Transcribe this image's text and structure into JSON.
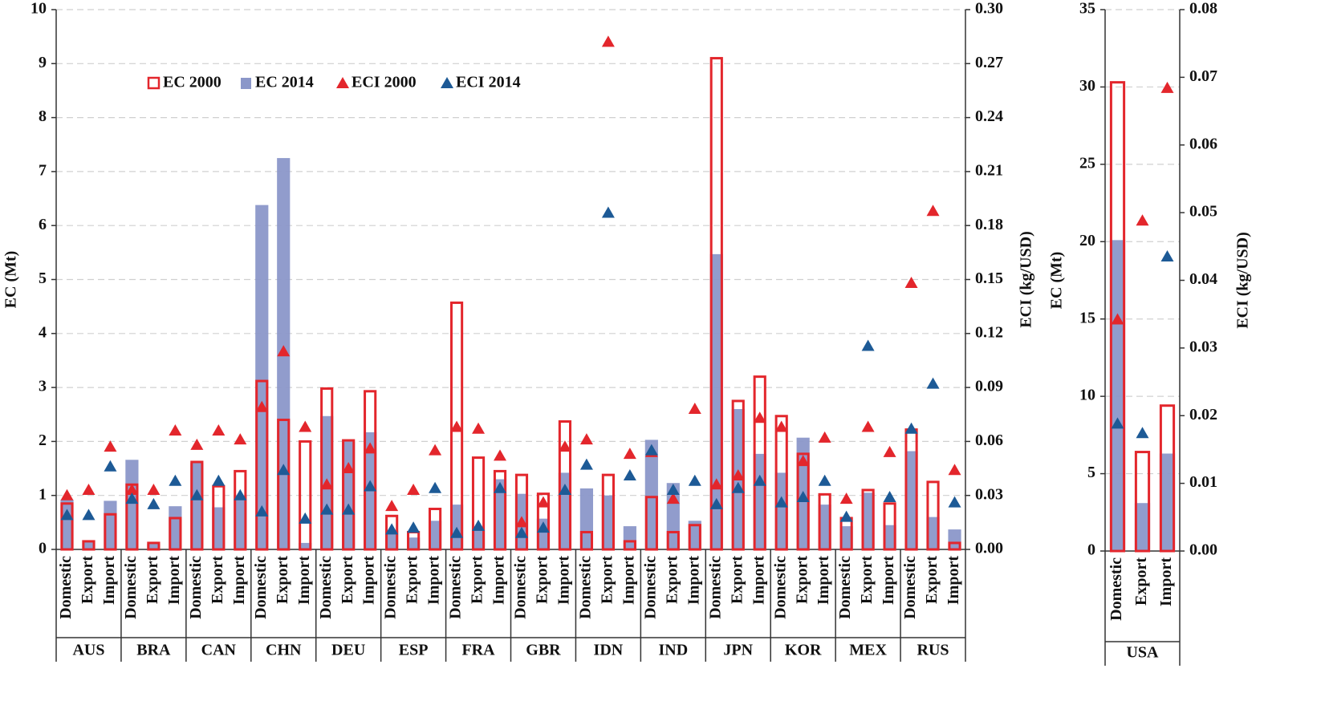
{
  "chart_data": [
    {
      "type": "bar",
      "y_label": "EC (Mt)",
      "y2_label": "ECI (kg/USD)",
      "groups": [
        "AUS",
        "BRA",
        "CAN",
        "CHN",
        "DEU",
        "ESP",
        "FRA",
        "GBR",
        "IDN",
        "IND",
        "JPN",
        "KOR",
        "MEX",
        "RUS"
      ],
      "categories": [
        "Domestic",
        "Export",
        "Import",
        "Domestic",
        "Export",
        "Import",
        "Domestic",
        "Export",
        "Import",
        "Domestic",
        "Export",
        "Import",
        "Domestic",
        "Export",
        "Import",
        "Domestic",
        "Export",
        "Import",
        "Domestic",
        "Export",
        "Import",
        "Domestic",
        "Export",
        "Import",
        "Domestic",
        "Export",
        "Import",
        "Domestic",
        "Export",
        "Import",
        "Domestic",
        "Export",
        "Import",
        "Domestic",
        "Export",
        "Import",
        "Domestic",
        "Export",
        "Import",
        "Domestic",
        "Export",
        "Import"
      ],
      "ylim": [
        0,
        10
      ],
      "yticks": [
        0,
        1,
        2,
        3,
        4,
        5,
        6,
        7,
        8,
        9,
        10
      ],
      "y2lim": [
        0,
        0.3
      ],
      "y2ticks": [
        {
          "value": 0,
          "label": "0.00"
        },
        0.03,
        0.06,
        0.09,
        0.12,
        0.15,
        0.18,
        0.21,
        0.24,
        0.27,
        {
          "value": 0.3,
          "label": "0.30"
        }
      ],
      "grid": true,
      "legend": "upper left",
      "series": [
        {
          "name": "EC 2014",
          "style": "filled",
          "color": "#8b97c9",
          "values": [
            0.92,
            0.17,
            0.9,
            1.66,
            0.1,
            0.8,
            1.6,
            0.78,
            1.0,
            6.38,
            7.25,
            0.12,
            2.47,
            2.0,
            2.17,
            0.35,
            0.22,
            0.53,
            0.83,
            0.35,
            1.3,
            1.03,
            0.57,
            1.42,
            1.13,
            1.0,
            0.43,
            2.03,
            1.23,
            0.53,
            5.47,
            2.6,
            1.77,
            1.42,
            2.07,
            0.83,
            0.43,
            1.05,
            0.45,
            1.82,
            0.6,
            0.37
          ]
        },
        {
          "name": "EC 2000",
          "style": "outline",
          "color": "#e3262c",
          "values": [
            0.85,
            0.15,
            0.65,
            1.2,
            0.12,
            0.58,
            1.62,
            1.17,
            1.45,
            3.12,
            2.4,
            2.0,
            2.98,
            2.02,
            2.93,
            0.62,
            0.32,
            0.75,
            4.57,
            1.7,
            1.45,
            1.38,
            1.03,
            2.37,
            0.32,
            1.38,
            0.15,
            0.97,
            0.32,
            0.45,
            9.1,
            2.75,
            3.2,
            2.47,
            1.77,
            1.02,
            0.58,
            1.1,
            0.85,
            2.22,
            1.25,
            0.12
          ]
        },
        {
          "name": "ECI 2000",
          "style": "triangle",
          "axis": "y2",
          "color": "#e3262c",
          "values": [
            0.03,
            0.033,
            0.057,
            0.033,
            0.033,
            0.066,
            0.058,
            0.066,
            0.061,
            0.079,
            0.11,
            0.068,
            0.036,
            0.045,
            0.056,
            0.024,
            0.033,
            0.055,
            0.068,
            0.067,
            0.052,
            0.015,
            0.026,
            0.057,
            0.061,
            0.282,
            0.053,
            0.054,
            0.028,
            0.078,
            0.036,
            0.041,
            0.073,
            0.068,
            0.049,
            0.062,
            0.028,
            0.068,
            0.054,
            0.148,
            0.188,
            0.044
          ]
        },
        {
          "name": "ECI 2014",
          "style": "triangle",
          "axis": "y2",
          "color": "#1d5a96",
          "values": [
            0.019,
            0.019,
            0.046,
            0.028,
            0.025,
            0.038,
            0.03,
            0.038,
            0.03,
            0.021,
            0.044,
            0.017,
            0.022,
            0.022,
            0.035,
            0.011,
            0.012,
            0.034,
            0.009,
            0.013,
            0.034,
            0.009,
            0.012,
            0.033,
            0.047,
            0.187,
            0.041,
            0.055,
            0.033,
            0.038,
            0.025,
            0.034,
            0.038,
            0.026,
            0.029,
            0.038,
            0.018,
            0.113,
            0.029,
            0.067,
            0.092,
            0.026
          ]
        }
      ]
    },
    {
      "type": "bar",
      "y_label": "EC (Mt)",
      "y2_label": "ECI (kg/USD)",
      "groups": [
        "USA"
      ],
      "categories": [
        "Domestic",
        "Export",
        "Import"
      ],
      "ylim": [
        0,
        35
      ],
      "yticks": [
        0,
        5,
        10,
        15,
        20,
        25,
        30,
        35
      ],
      "y2lim": [
        0,
        0.08
      ],
      "y2ticks": [
        {
          "value": 0,
          "label": "0.00"
        },
        0.01,
        0.02,
        0.03,
        0.04,
        0.05,
        0.06,
        0.07,
        0.08
      ],
      "grid": true,
      "series": [
        {
          "style": "filled",
          "color": "#8b97c9",
          "values": [
            20.1,
            3.1,
            6.3
          ]
        },
        {
          "style": "outline",
          "color": "#e3262c",
          "values": [
            30.3,
            6.4,
            9.4
          ]
        },
        {
          "style": "triangle",
          "axis": "y2",
          "color": "#e3262c",
          "values": [
            0.0342,
            0.0488,
            0.0684
          ]
        },
        {
          "style": "triangle",
          "axis": "y2",
          "color": "#1d5a96",
          "values": [
            0.0188,
            0.0174,
            0.0435
          ]
        }
      ]
    }
  ]
}
